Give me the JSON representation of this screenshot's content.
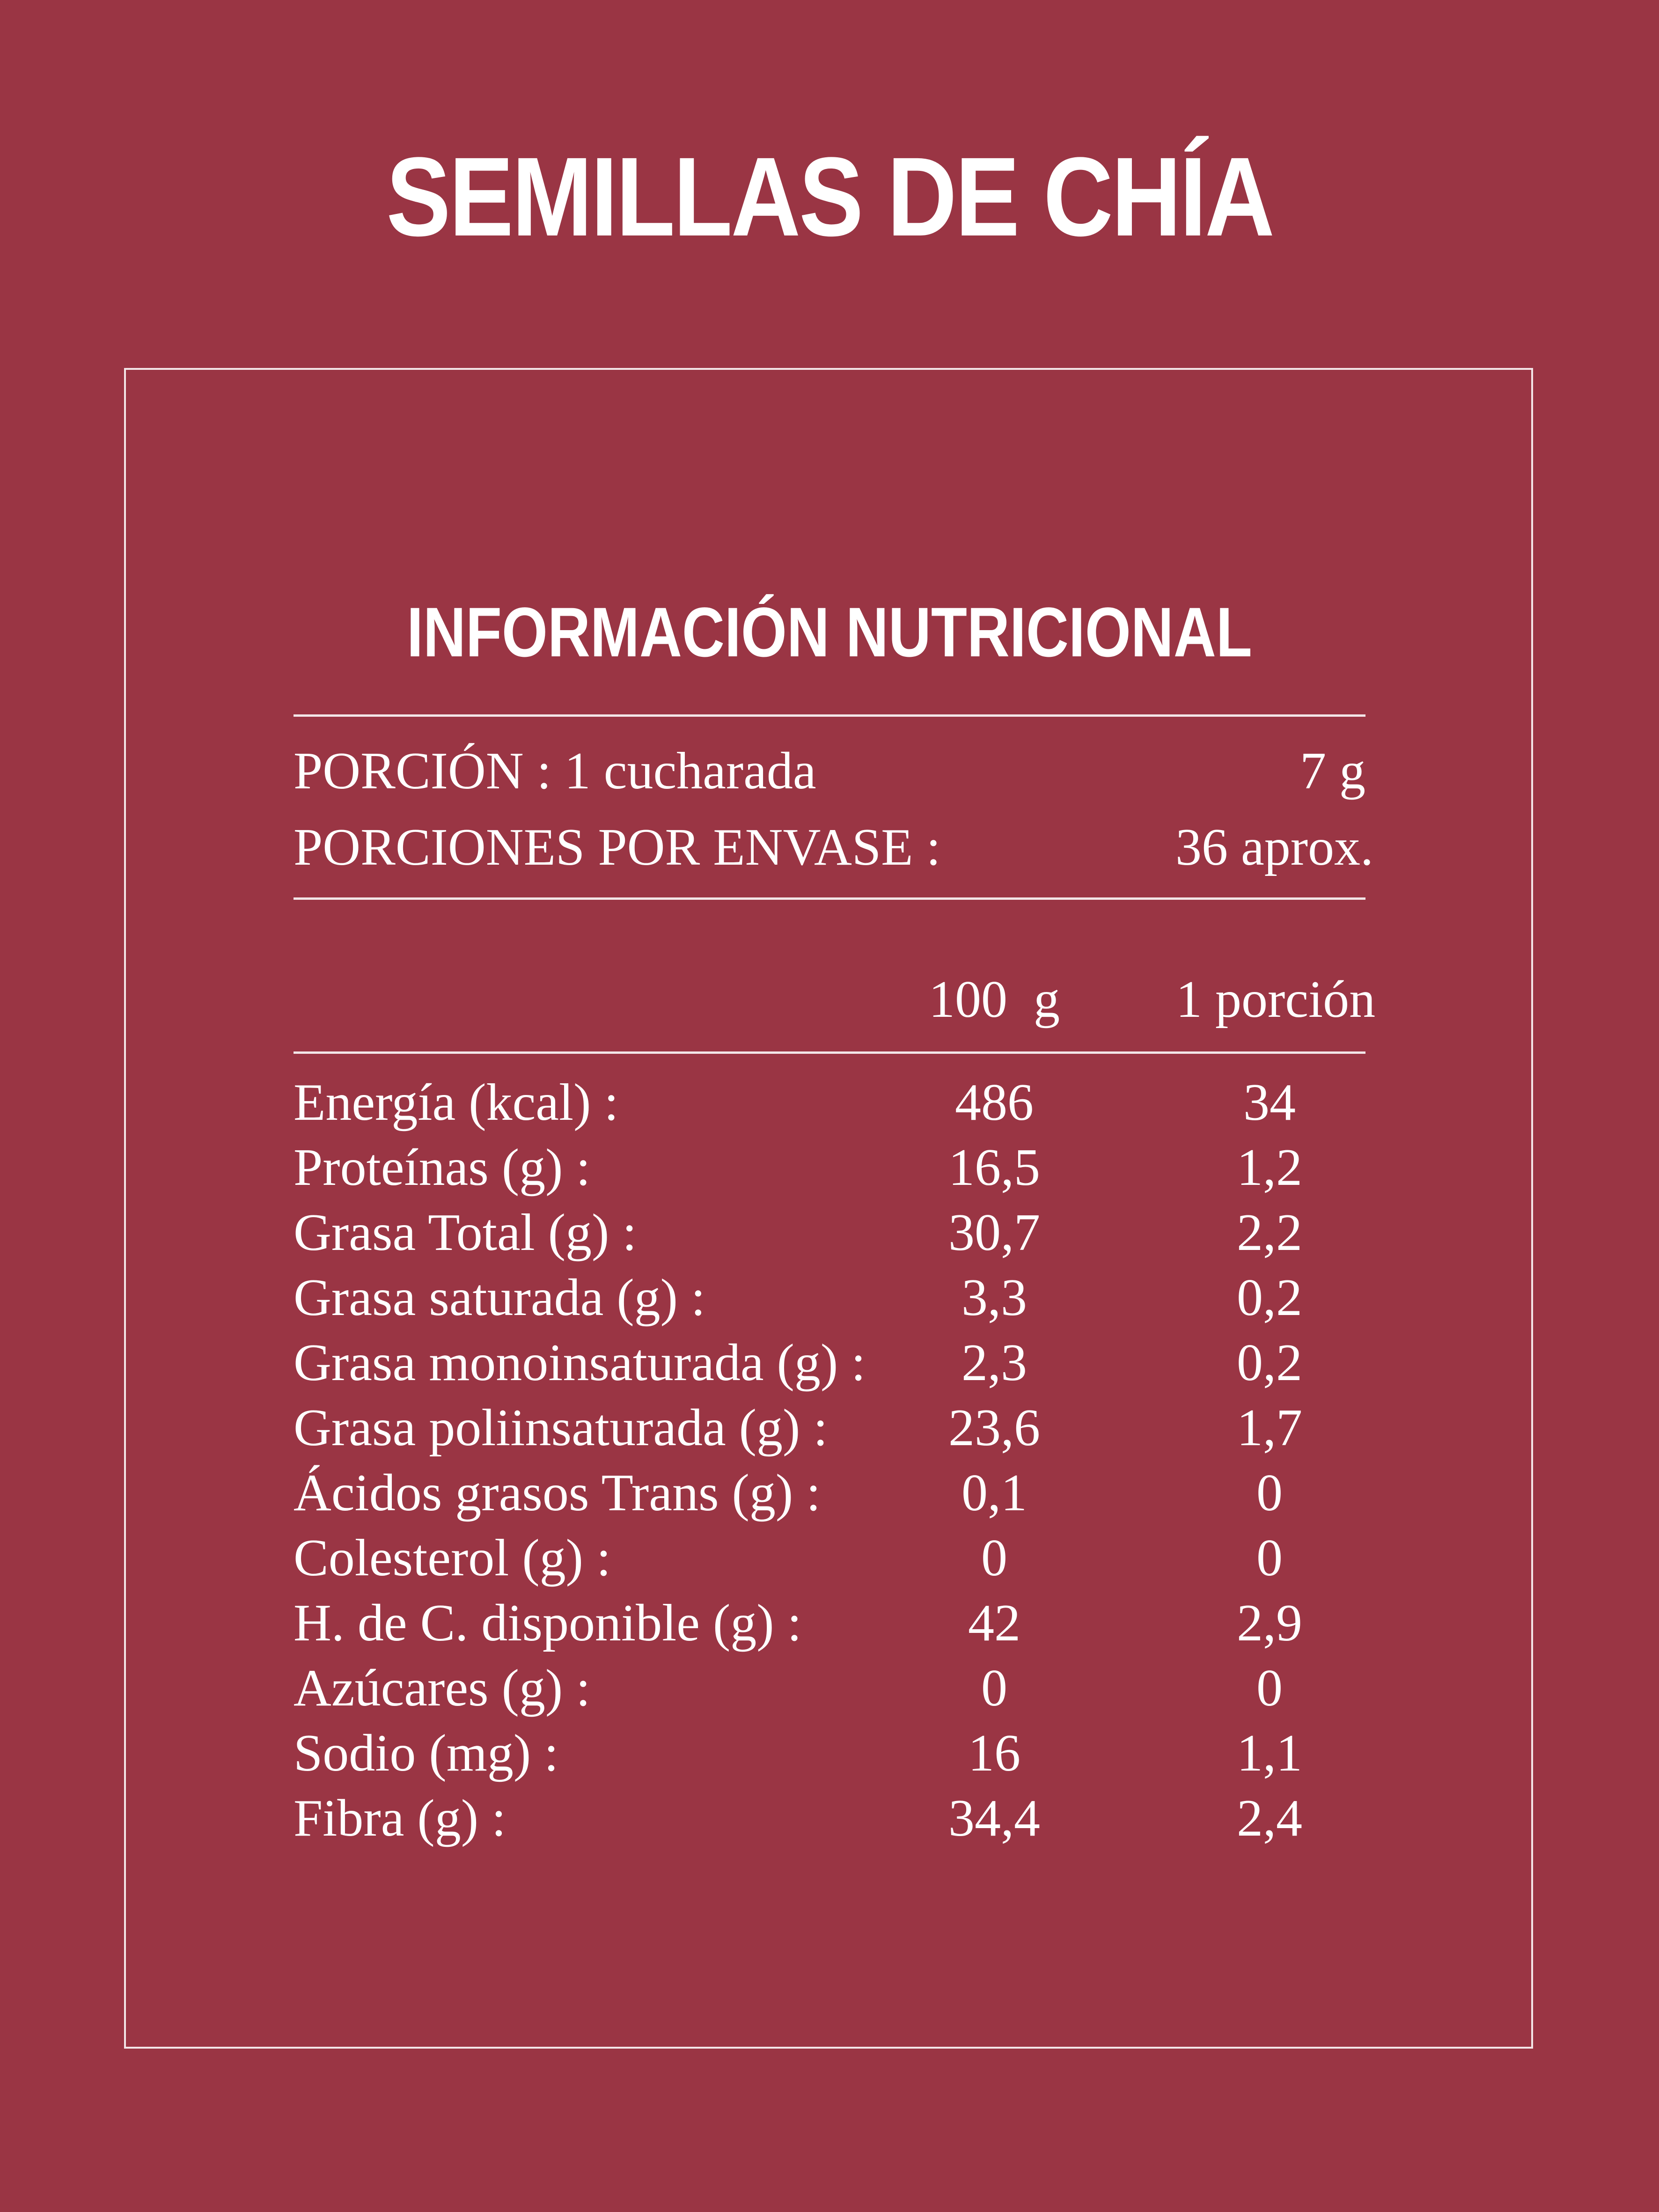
{
  "title": "SEMILLAS DE CHÍA",
  "subtitle": "INFORMACIÓN NUTRICIONAL",
  "serving": {
    "label": "PORCIÓN : 1 cucharada",
    "value": "7 g",
    "per_package_label": "PORCIONES POR ENVASE :",
    "per_package_value": "36 aprox."
  },
  "columns": {
    "per100": "100  g",
    "per_portion": "1 porción"
  },
  "rows": [
    {
      "label": "Energía (kcal) :",
      "per100": "486",
      "portion": "34"
    },
    {
      "label": "Proteínas (g) :",
      "per100": "16,5",
      "portion": "1,2"
    },
    {
      "label": "Grasa Total (g) :",
      "per100": "30,7",
      "portion": "2,2"
    },
    {
      "label": "Grasa saturada (g) :",
      "per100": "3,3",
      "portion": "0,2"
    },
    {
      "label": "Grasa monoinsaturada (g) :",
      "per100": "2,3",
      "portion": "0,2"
    },
    {
      "label": "Grasa poliinsaturada (g) :",
      "per100": "23,6",
      "portion": "1,7"
    },
    {
      "label": "Ácidos grasos Trans (g) :",
      "per100": "0,1",
      "portion": "0"
    },
    {
      "label": "Colesterol (g) :",
      "per100": "0",
      "portion": "0"
    },
    {
      "label": "H. de C. disponible (g) :",
      "per100": "42",
      "portion": "2,9"
    },
    {
      "label": "Azúcares (g) :",
      "per100": "0",
      "portion": "0"
    },
    {
      "label": "Sodio (mg) :",
      "per100": "16",
      "portion": "1,1"
    },
    {
      "label": "Fibra (g) :",
      "per100": "34,4",
      "portion": "2,4"
    }
  ],
  "colors": {
    "background": "#9a3544",
    "text": "#ffffff"
  }
}
